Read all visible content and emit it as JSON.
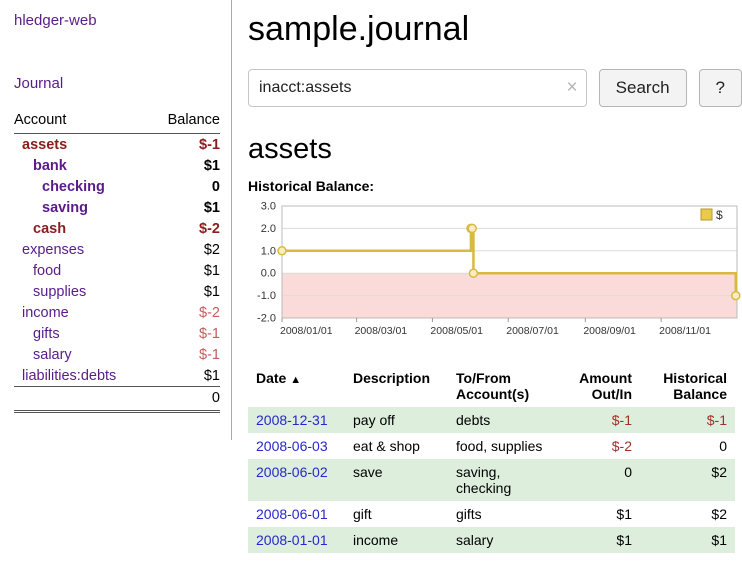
{
  "sidebar": {
    "app_title": "hledger-web",
    "journal_link": "Journal",
    "accounts": {
      "header_account": "Account",
      "header_balance": "Balance",
      "rows": [
        {
          "name": "assets",
          "balance": "$-1"
        },
        {
          "name": "bank",
          "balance": "$1"
        },
        {
          "name": "checking",
          "balance": "0"
        },
        {
          "name": "saving",
          "balance": "$1"
        },
        {
          "name": "cash",
          "balance": "$-2"
        },
        {
          "name": "expenses",
          "balance": "$2"
        },
        {
          "name": "food",
          "balance": "$1"
        },
        {
          "name": "supplies",
          "balance": "$1"
        },
        {
          "name": "income",
          "balance": "$-2"
        },
        {
          "name": "gifts",
          "balance": "$-1"
        },
        {
          "name": "salary",
          "balance": "$-1"
        },
        {
          "name": "liabilities:debts",
          "balance": "$1"
        }
      ],
      "total": "0"
    }
  },
  "main": {
    "title": "sample.journal",
    "search": {
      "value": "inacct:assets",
      "clear_icon": "×",
      "search_button": "Search",
      "help_button": "?"
    },
    "section_title": "assets",
    "chart_title": "Historical Balance:"
  },
  "chart_data": {
    "type": "line",
    "step": true,
    "title": "Historical Balance:",
    "legend": [
      "$"
    ],
    "legend_position": "top-right",
    "grid": true,
    "series_color": "#d9b941",
    "marker_fill": "#f7edc2",
    "negative_region_color": "#fadbd9",
    "ylim": [
      -2,
      3
    ],
    "y_ticks": [
      3.0,
      2.0,
      1.0,
      0.0,
      -1.0,
      -2.0
    ],
    "x_range": [
      "2008-01-01",
      "2009-01-01"
    ],
    "x_tick_labels": [
      "2008/01/01",
      "2008/03/01",
      "2008/05/01",
      "2008/07/01",
      "2008/09/01",
      "2008/11/01"
    ],
    "series": [
      {
        "name": "$",
        "points": [
          {
            "x": "2008-01-01",
            "y": 1
          },
          {
            "x": "2008-06-01",
            "y": 2
          },
          {
            "x": "2008-06-02",
            "y": 2
          },
          {
            "x": "2008-06-03",
            "y": 0
          },
          {
            "x": "2008-12-31",
            "y": -1
          }
        ]
      }
    ]
  },
  "transactions": {
    "sort_icon": "▲",
    "headers": {
      "date": "Date",
      "description": "Description",
      "account": "To/From Account(s)",
      "amount": "Amount Out/In",
      "balance": "Historical Balance"
    },
    "rows": [
      {
        "date": "2008-12-31",
        "description": "pay off",
        "account": "debts",
        "amount": "$-1",
        "balance": "$-1"
      },
      {
        "date": "2008-06-03",
        "description": "eat & shop",
        "account": "food, supplies",
        "amount": "$-2",
        "balance": "0"
      },
      {
        "date": "2008-06-02",
        "description": "save",
        "account": "saving, checking",
        "amount": "0",
        "balance": "$2"
      },
      {
        "date": "2008-06-01",
        "description": "gift",
        "account": "gifts",
        "amount": "$1",
        "balance": "$2"
      },
      {
        "date": "2008-01-01",
        "description": "income",
        "account": "salary",
        "amount": "$1",
        "balance": "$1"
      }
    ]
  }
}
